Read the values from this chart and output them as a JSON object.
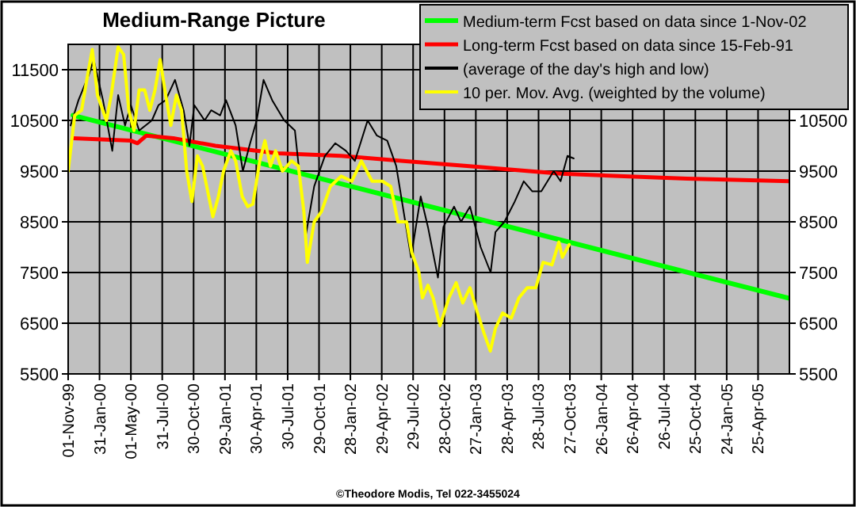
{
  "chart_data": {
    "type": "line",
    "title": "Medium-Range Picture",
    "legend": "top right",
    "grid": true,
    "xlim": [
      "1999-11-01",
      "2005-07-25"
    ],
    "xticks": [
      {
        "value": "1999-11-01",
        "label": "01-Nov-99"
      },
      {
        "value": "2000-01-31",
        "label": "31-Jan-00"
      },
      {
        "value": "2000-05-01",
        "label": "01-May-00"
      },
      {
        "value": "2000-07-31",
        "label": "31-Jul-00"
      },
      {
        "value": "2000-10-30",
        "label": "30-Oct-00"
      },
      {
        "value": "2001-01-29",
        "label": "29-Jan-01"
      },
      {
        "value": "2001-04-30",
        "label": "30-Apr-01"
      },
      {
        "value": "2001-07-30",
        "label": "30-Jul-01"
      },
      {
        "value": "2001-10-29",
        "label": "29-Oct-01"
      },
      {
        "value": "2002-01-28",
        "label": "28-Jan-02"
      },
      {
        "value": "2002-04-29",
        "label": "29-Apr-02"
      },
      {
        "value": "2002-07-29",
        "label": "29-Jul-02"
      },
      {
        "value": "2002-10-28",
        "label": "28-Oct-02"
      },
      {
        "value": "2003-01-27",
        "label": "27-Jan-03"
      },
      {
        "value": "2003-04-28",
        "label": "28-Apr-03"
      },
      {
        "value": "2003-07-28",
        "label": "28-Jul-03"
      },
      {
        "value": "2003-10-27",
        "label": "27-Oct-03"
      },
      {
        "value": "2004-01-26",
        "label": "26-Jan-04"
      },
      {
        "value": "2004-04-26",
        "label": "26-Apr-04"
      },
      {
        "value": "2004-07-26",
        "label": "26-Jul-04"
      },
      {
        "value": "2004-10-25",
        "label": "25-Oct-04"
      },
      {
        "value": "2005-01-24",
        "label": "24-Jan-05"
      },
      {
        "value": "2005-04-25",
        "label": "25-Apr-05"
      }
    ],
    "ylim": [
      5500,
      12000
    ],
    "yticks": [
      5500,
      6500,
      7500,
      8500,
      9500,
      10500,
      11500
    ],
    "y2lim": [
      5500,
      12000
    ],
    "y2ticks": [
      5500,
      6500,
      7500,
      8500,
      9500,
      10500
    ],
    "annotations": [
      "©Theodore Modis, Tel 022-3455024"
    ],
    "series": [
      {
        "name": "Medium-term Fcst based on data since 1-Nov-02",
        "color": "#00ff00",
        "type": "line",
        "x": [
          "1999-11-15",
          "2005-07-25"
        ],
        "values": [
          10600,
          6990
        ]
      },
      {
        "name": "Long-term Fcst based on data since 15-Feb-91",
        "color": "#ff0000",
        "type": "line",
        "x": [
          "1999-11-15",
          "2000-05-01",
          "2000-05-20",
          "2000-06-15",
          "2000-09-01",
          "2001-01-01",
          "2001-07-01",
          "2002-01-01",
          "2002-07-01",
          "2003-01-01",
          "2003-07-01",
          "2003-10-01",
          "2004-04-01",
          "2004-10-01",
          "2005-07-25"
        ],
        "values": [
          10150,
          10100,
          10050,
          10200,
          10150,
          10000,
          9850,
          9800,
          9700,
          9600,
          9500,
          9450,
          9400,
          9350,
          9300
        ]
      },
      {
        "name": "(average of the day's high and low)",
        "color": "#000000",
        "type": "line",
        "x": [
          "1999-11-08",
          "1999-12-01",
          "1999-12-31",
          "2000-01-14",
          "2000-02-10",
          "2000-03-08",
          "2000-03-25",
          "2000-04-14",
          "2000-05-01",
          "2000-05-25",
          "2000-07-01",
          "2000-07-20",
          "2000-08-10",
          "2000-09-06",
          "2000-10-01",
          "2000-10-18",
          "2000-11-01",
          "2000-12-01",
          "2000-12-20",
          "2001-01-15",
          "2001-02-01",
          "2001-03-01",
          "2001-03-22",
          "2001-04-10",
          "2001-05-01",
          "2001-05-21",
          "2001-06-15",
          "2001-07-20",
          "2001-08-20",
          "2001-09-21",
          "2001-10-15",
          "2001-11-15",
          "2001-12-15",
          "2002-01-15",
          "2002-02-10",
          "2002-03-19",
          "2002-04-15",
          "2002-05-15",
          "2002-06-10",
          "2002-07-23",
          "2002-08-20",
          "2002-09-10",
          "2002-10-09",
          "2002-10-25",
          "2002-11-25",
          "2002-12-15",
          "2003-01-10",
          "2003-02-10",
          "2003-03-11",
          "2003-03-25",
          "2003-04-20",
          "2003-05-20",
          "2003-06-15",
          "2003-07-10",
          "2003-08-05",
          "2003-09-10",
          "2003-09-30",
          "2003-10-20",
          "2003-11-07"
        ],
        "values": [
          10400,
          10900,
          11400,
          11700,
          10900,
          9900,
          11000,
          10400,
          10800,
          10300,
          10500,
          10800,
          10900,
          11300,
          10700,
          10000,
          10800,
          10500,
          10700,
          10600,
          10900,
          10400,
          9500,
          10000,
          10500,
          11300,
          10900,
          10500,
          10300,
          8250,
          9200,
          9800,
          10050,
          9900,
          9700,
          10500,
          10200,
          10100,
          9600,
          7800,
          9000,
          8400,
          7400,
          8400,
          8800,
          8500,
          8800,
          8000,
          7500,
          8300,
          8500,
          8900,
          9300,
          9100,
          9100,
          9500,
          9300,
          9800,
          9750
        ]
      },
      {
        "name": "10 per. Mov. Avg. (weighted by the volume)",
        "color": "#ffff00",
        "type": "line",
        "x": [
          "1999-11-01",
          "1999-11-20",
          "1999-12-10",
          "1999-12-25",
          "2000-01-10",
          "2000-01-25",
          "2000-02-20",
          "2000-03-05",
          "2000-03-25",
          "2000-04-10",
          "2000-04-25",
          "2000-05-10",
          "2000-05-25",
          "2000-06-10",
          "2000-06-25",
          "2000-07-10",
          "2000-07-25",
          "2000-08-10",
          "2000-08-25",
          "2000-09-10",
          "2000-09-25",
          "2000-10-10",
          "2000-10-25",
          "2000-11-10",
          "2000-11-25",
          "2000-12-10",
          "2000-12-25",
          "2001-01-10",
          "2001-01-25",
          "2001-02-15",
          "2001-03-01",
          "2001-03-20",
          "2001-04-05",
          "2001-04-20",
          "2001-05-10",
          "2001-05-25",
          "2001-06-10",
          "2001-06-25",
          "2001-07-15",
          "2001-08-10",
          "2001-08-30",
          "2001-09-15",
          "2001-09-25",
          "2001-10-15",
          "2001-11-05",
          "2001-12-01",
          "2002-01-01",
          "2002-02-01",
          "2002-03-01",
          "2002-04-01",
          "2002-05-01",
          "2002-05-25",
          "2002-06-15",
          "2002-07-10",
          "2002-07-25",
          "2002-08-15",
          "2002-08-25",
          "2002-09-10",
          "2002-09-25",
          "2002-10-15",
          "2002-11-10",
          "2002-12-01",
          "2002-12-20",
          "2003-01-10",
          "2003-02-01",
          "2003-02-20",
          "2003-03-10",
          "2003-03-25",
          "2003-04-15",
          "2003-05-10",
          "2003-06-01",
          "2003-06-25",
          "2003-07-20",
          "2003-08-10",
          "2003-09-05",
          "2003-09-25",
          "2003-10-05",
          "2003-10-25"
        ],
        "values": [
          9500,
          10600,
          10700,
          11300,
          11900,
          11000,
          10500,
          11000,
          11950,
          11800,
          10700,
          10300,
          11100,
          11100,
          10700,
          11100,
          11700,
          11000,
          10400,
          11000,
          10700,
          9500,
          8900,
          9800,
          9600,
          9100,
          8600,
          9000,
          9500,
          9900,
          9700,
          9000,
          8800,
          8850,
          9700,
          10100,
          9600,
          9900,
          9500,
          9700,
          9600,
          8700,
          7700,
          8500,
          8700,
          9200,
          9400,
          9300,
          9700,
          9300,
          9300,
          9200,
          8500,
          8500,
          7900,
          7500,
          7000,
          7250,
          7000,
          6450,
          7000,
          7300,
          6900,
          7200,
          6700,
          6300,
          5950,
          6400,
          6700,
          6600,
          7000,
          7200,
          7200,
          7700,
          7650,
          8100,
          7800,
          8050
        ]
      }
    ]
  }
}
